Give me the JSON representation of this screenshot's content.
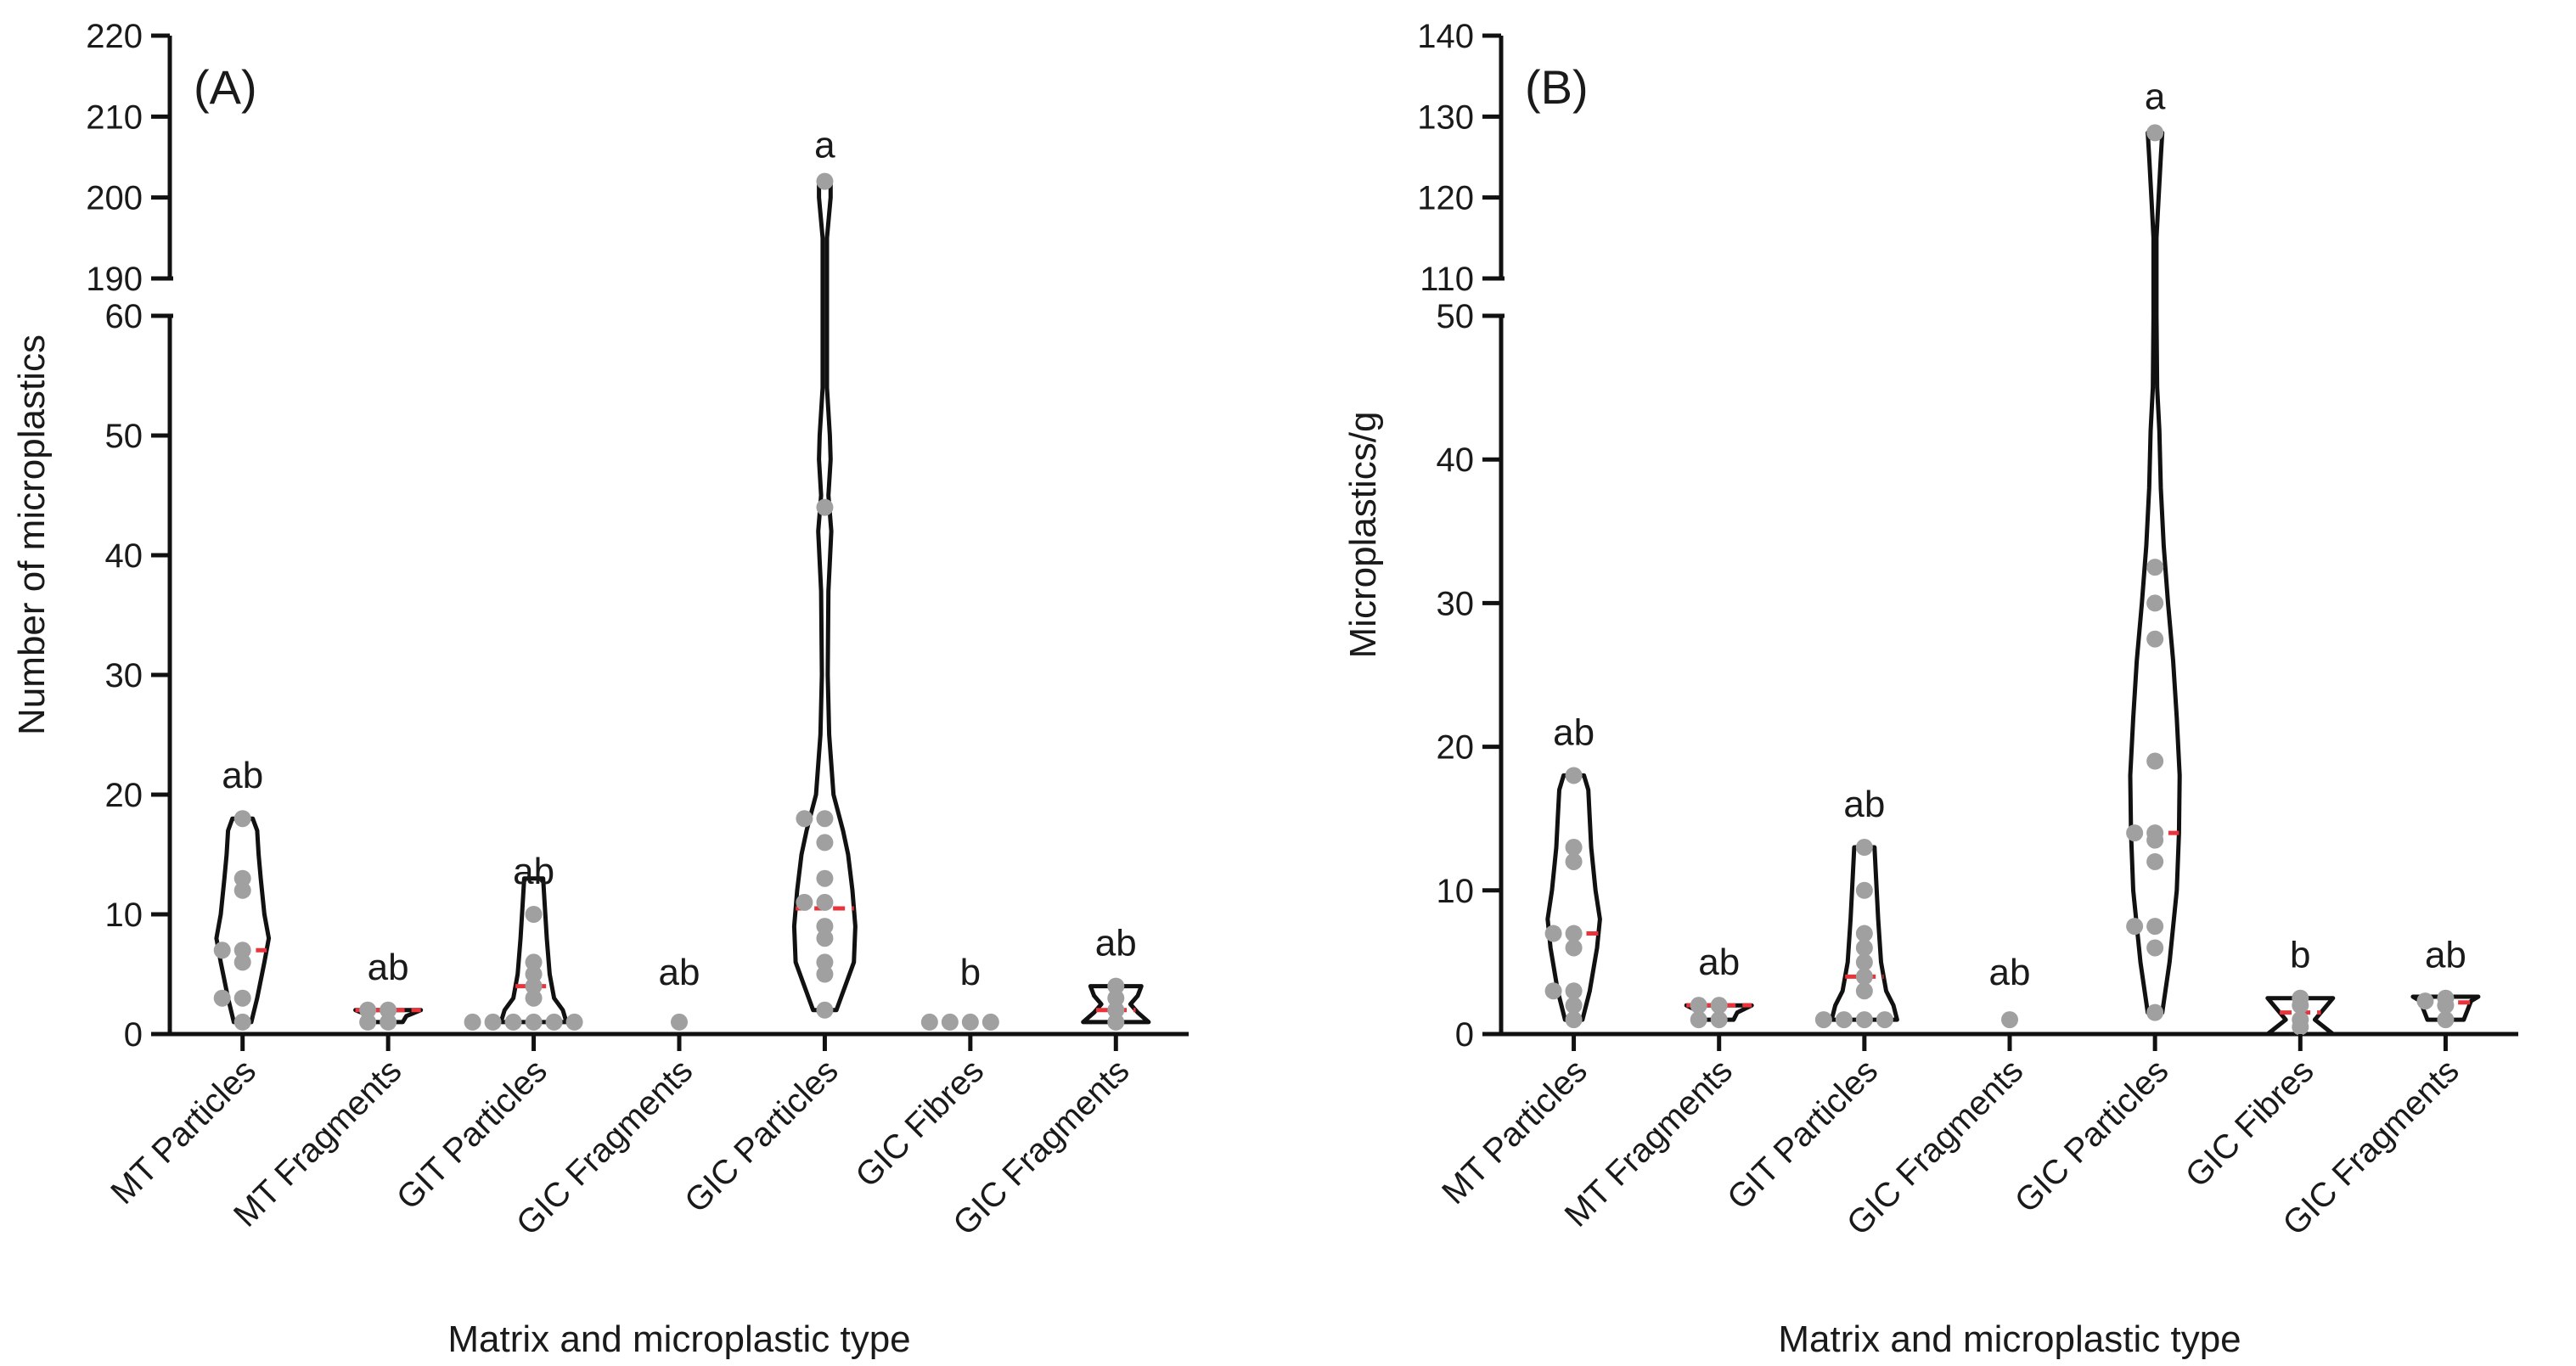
{
  "chart_data": [
    {
      "type": "violin",
      "panel_label": "(A)",
      "xlabel": "Matrix and microplastic type",
      "ylabel": "Number of microplastics",
      "y_axis_break": true,
      "ylim_lower": [
        0,
        60
      ],
      "ylim_upper": [
        190,
        220
      ],
      "yticks_lower": [
        "0",
        "10",
        "20",
        "30",
        "40",
        "50",
        "60"
      ],
      "yticks_upper": [
        "190",
        "200",
        "210",
        "220"
      ],
      "categories": [
        "MT Particles",
        "MT Fragments",
        "GIT Particles",
        "GIC Fragments",
        "GIC Particles",
        "GIC Fibres",
        "GIC Fragments"
      ],
      "groups": [
        {
          "category": "MT Particles",
          "letter": "ab",
          "median": 7,
          "points": [
            18,
            13,
            12,
            7,
            7,
            6,
            3,
            3,
            1
          ],
          "outline": [
            [
              1,
              0.12
            ],
            [
              3,
              0.2
            ],
            [
              6,
              0.3
            ],
            [
              8,
              0.36
            ],
            [
              10,
              0.3
            ],
            [
              13,
              0.25
            ],
            [
              15,
              0.22
            ],
            [
              17,
              0.2
            ],
            [
              18,
              0.14
            ]
          ]
        },
        {
          "category": "MT Fragments",
          "letter": "ab",
          "median": 2,
          "points": [
            2,
            2,
            1,
            1
          ],
          "outline": [
            [
              1,
              0.2
            ],
            [
              1.5,
              0.25
            ],
            [
              2,
              0.45
            ]
          ]
        },
        {
          "category": "GIT Particles",
          "letter": "ab",
          "median": 4,
          "points": [
            10,
            6,
            5,
            4,
            3,
            1,
            1,
            1,
            1,
            1,
            1
          ],
          "outline": [
            [
              1,
              0.45
            ],
            [
              2,
              0.4
            ],
            [
              3,
              0.28
            ],
            [
              5,
              0.22
            ],
            [
              8,
              0.18
            ],
            [
              11,
              0.15
            ],
            [
              13,
              0.13
            ]
          ]
        },
        {
          "category": "GIC Fragments",
          "letter": "ab",
          "median": null,
          "points": [
            1
          ],
          "outline": []
        },
        {
          "category": "GIC Particles",
          "letter": "a",
          "median": 10.5,
          "points": [
            202,
            44,
            18,
            18,
            16,
            13,
            11,
            11,
            9,
            8,
            6,
            5,
            2
          ],
          "outline": [
            [
              2,
              0.16
            ],
            [
              4,
              0.28
            ],
            [
              6,
              0.4
            ],
            [
              9,
              0.42
            ],
            [
              12,
              0.38
            ],
            [
              15,
              0.32
            ],
            [
              17,
              0.25
            ],
            [
              20,
              0.12
            ],
            [
              25,
              0.06
            ],
            [
              30,
              0.04
            ],
            [
              37,
              0.05
            ],
            [
              42,
              0.09
            ],
            [
              45,
              0.05
            ],
            [
              48,
              0.08
            ],
            [
              50,
              0.07
            ],
            [
              54,
              0.03
            ],
            [
              60,
              0.03
            ],
            [
              195,
              0.03
            ],
            [
              200,
              0.08
            ],
            [
              202,
              0.08
            ]
          ]
        },
        {
          "category": "GIC Fibres",
          "letter": "b",
          "median": null,
          "points": [
            1,
            1,
            1,
            1
          ],
          "outline": []
        },
        {
          "category": "GIC Fragments",
          "letter": "ab",
          "median": 2,
          "points": [
            4,
            3,
            2,
            1
          ],
          "outline": [
            [
              1,
              0.45
            ],
            [
              1.8,
              0.3
            ],
            [
              2.5,
              0.2
            ],
            [
              3.2,
              0.3
            ],
            [
              4,
              0.35
            ]
          ]
        }
      ]
    },
    {
      "type": "violin",
      "panel_label": "(B)",
      "xlabel": "Matrix and microplastic type",
      "ylabel": "Microplastics/g",
      "y_axis_break": true,
      "ylim_lower": [
        0,
        50
      ],
      "ylim_upper": [
        110,
        140
      ],
      "yticks_lower": [
        "0",
        "10",
        "20",
        "30",
        "40",
        "50"
      ],
      "yticks_upper": [
        "110",
        "120",
        "130",
        "140"
      ],
      "categories": [
        "MT Particles",
        "MT Fragments",
        "GIT Particles",
        "GIC Fragments",
        "GIC Particles",
        "GIC Fibres",
        "GIC Fragments"
      ],
      "groups": [
        {
          "category": "MT Particles",
          "letter": "ab",
          "median": 7,
          "points": [
            18,
            13,
            12,
            7,
            7,
            6,
            3,
            3,
            2,
            1
          ],
          "outline": [
            [
              1,
              0.12
            ],
            [
              3,
              0.22
            ],
            [
              6,
              0.32
            ],
            [
              8,
              0.36
            ],
            [
              10,
              0.3
            ],
            [
              13,
              0.24
            ],
            [
              15,
              0.22
            ],
            [
              17,
              0.2
            ],
            [
              18,
              0.14
            ]
          ]
        },
        {
          "category": "MT Fragments",
          "letter": "ab",
          "median": 2,
          "points": [
            2,
            2,
            1,
            1
          ],
          "outline": [
            [
              1,
              0.2
            ],
            [
              1.5,
              0.25
            ],
            [
              2,
              0.45
            ]
          ]
        },
        {
          "category": "GIT Particles",
          "letter": "ab",
          "median": 4,
          "points": [
            13,
            10,
            7,
            6,
            5,
            4,
            3,
            1,
            1,
            1,
            1
          ],
          "outline": [
            [
              1,
              0.45
            ],
            [
              2,
              0.4
            ],
            [
              3,
              0.3
            ],
            [
              5,
              0.23
            ],
            [
              8,
              0.19
            ],
            [
              11,
              0.16
            ],
            [
              13,
              0.14
            ]
          ]
        },
        {
          "category": "GIC Fragments",
          "letter": "ab",
          "median": null,
          "points": [
            1
          ],
          "outline": []
        },
        {
          "category": "GIC Particles",
          "letter": "a",
          "median": 14,
          "points": [
            128,
            32.5,
            30,
            27.5,
            19,
            14,
            14,
            13.5,
            12,
            7.5,
            7.5,
            6,
            1.5
          ],
          "outline": [
            [
              1.5,
              0.1
            ],
            [
              5,
              0.2
            ],
            [
              10,
              0.3
            ],
            [
              14,
              0.33
            ],
            [
              18,
              0.34
            ],
            [
              22,
              0.3
            ],
            [
              26,
              0.25
            ],
            [
              30,
              0.18
            ],
            [
              34,
              0.12
            ],
            [
              38,
              0.08
            ],
            [
              42,
              0.06
            ],
            [
              45,
              0.03
            ],
            [
              50,
              0.02
            ],
            [
              115,
              0.02
            ],
            [
              120,
              0.05
            ],
            [
              125,
              0.08
            ],
            [
              128,
              0.1
            ]
          ]
        },
        {
          "category": "GIC Fibres",
          "letter": "b",
          "median": 1.5,
          "points": [
            2.5,
            2,
            1,
            0.5
          ],
          "outline": [
            [
              0,
              0.45
            ],
            [
              1,
              0.2
            ],
            [
              2.5,
              0.45
            ]
          ]
        },
        {
          "category": "GIC Fragments",
          "letter": "ab",
          "median": 2.2,
          "points": [
            2.5,
            2.3,
            2,
            1
          ],
          "outline": [
            [
              1,
              0.25
            ],
            [
              2.3,
              0.35
            ],
            [
              2.6,
              0.45
            ]
          ]
        }
      ]
    }
  ]
}
